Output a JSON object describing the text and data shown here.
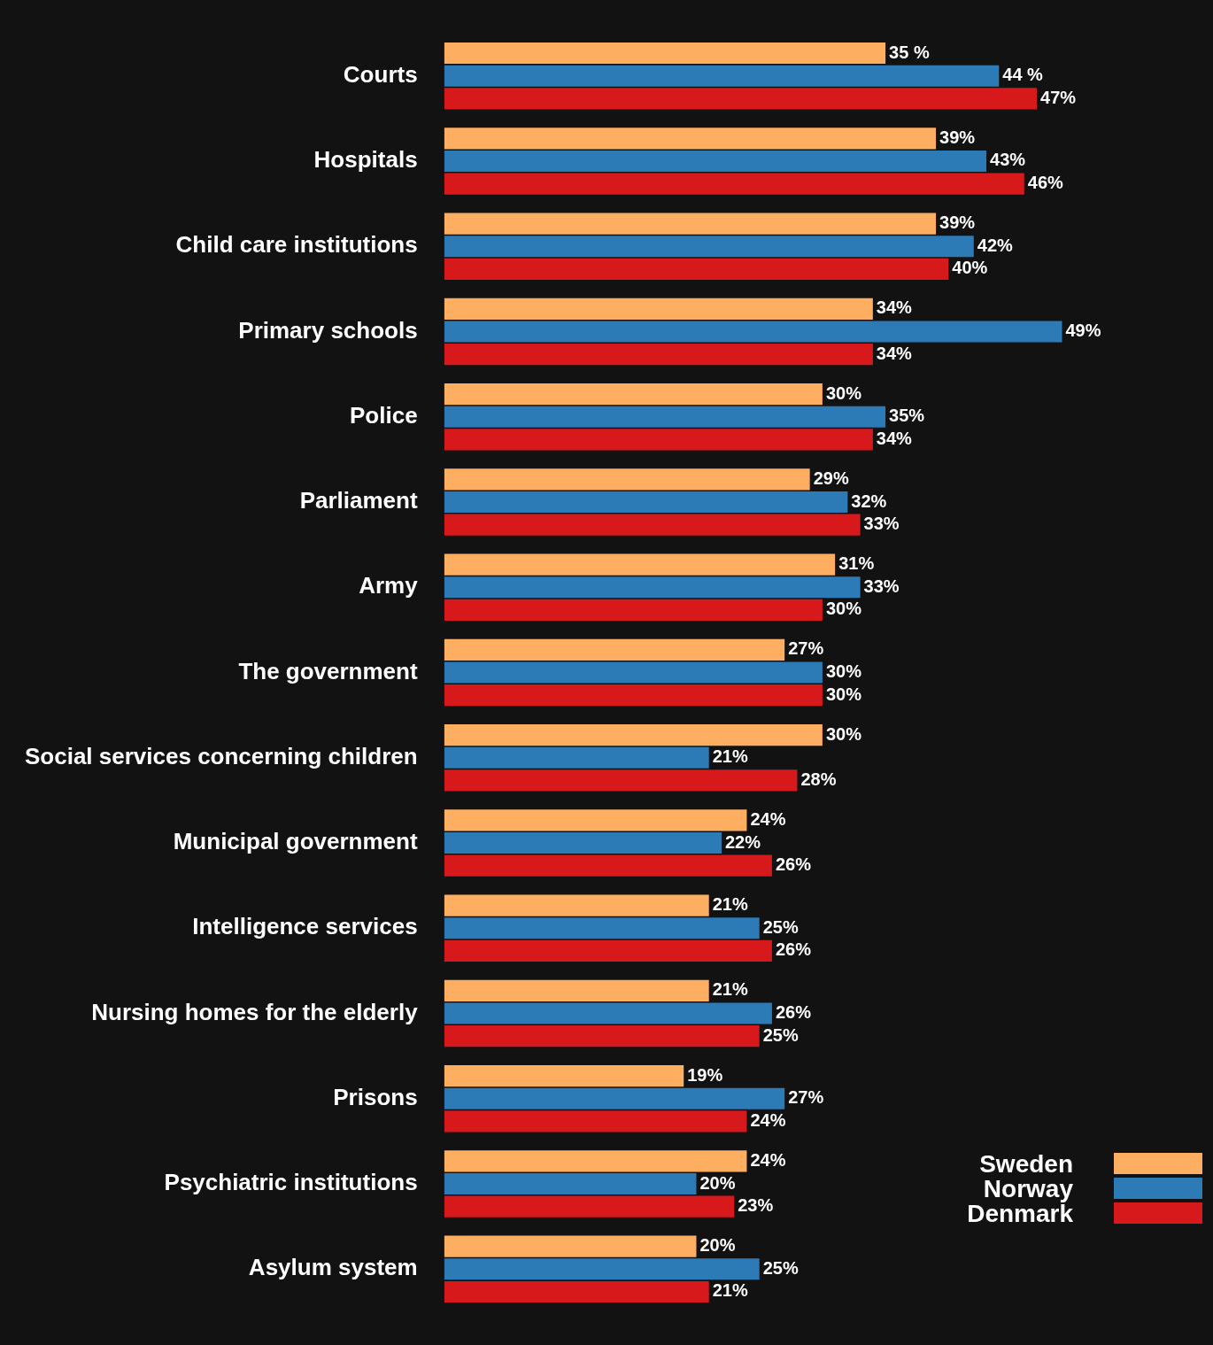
{
  "chart_data": {
    "type": "bar",
    "orientation": "horizontal",
    "legend": "bottom right",
    "categories": [
      "Courts",
      "Hospitals",
      "Child care institutions",
      "Primary schools",
      "Police",
      "Parliament",
      "Army",
      "The government",
      "Social services concerning children",
      "Municipal government",
      "Intelligence services",
      "Nursing homes for the elderly",
      "Prisons",
      "Psychiatric institutions",
      "Asylum system"
    ],
    "series": [
      {
        "name": "Sweden",
        "color": "#fdae61",
        "values": [
          35,
          39,
          39,
          34,
          30,
          29,
          31,
          27,
          30,
          24,
          21,
          21,
          19,
          24,
          20
        ],
        "value_labels": [
          "35 %",
          "39%",
          "39%",
          "34%",
          "30%",
          "29%",
          "31%",
          "27%",
          "30%",
          "24%",
          "21%",
          "21%",
          "19%",
          "24%",
          "20%"
        ]
      },
      {
        "name": "Norway",
        "color": "#2c7bb6",
        "values": [
          44,
          43,
          42,
          49,
          35,
          32,
          33,
          30,
          21,
          22,
          25,
          26,
          27,
          20,
          25
        ],
        "value_labels": [
          "44 %",
          "43%",
          "42%",
          "49%",
          "35%",
          "32%",
          "33%",
          "30%",
          "21%",
          "22%",
          "25%",
          "26%",
          "27%",
          "20%",
          "25%"
        ]
      },
      {
        "name": "Denmark",
        "color": "#d7191c",
        "values": [
          47,
          46,
          40,
          34,
          34,
          33,
          30,
          30,
          28,
          26,
          26,
          25,
          24,
          23,
          21
        ],
        "value_labels": [
          "47%",
          "46%",
          "40%",
          "34%",
          "34%",
          "33%",
          "30%",
          "30%",
          "28%",
          "26%",
          "26%",
          "25%",
          "24%",
          "23%",
          "21%"
        ]
      }
    ]
  }
}
